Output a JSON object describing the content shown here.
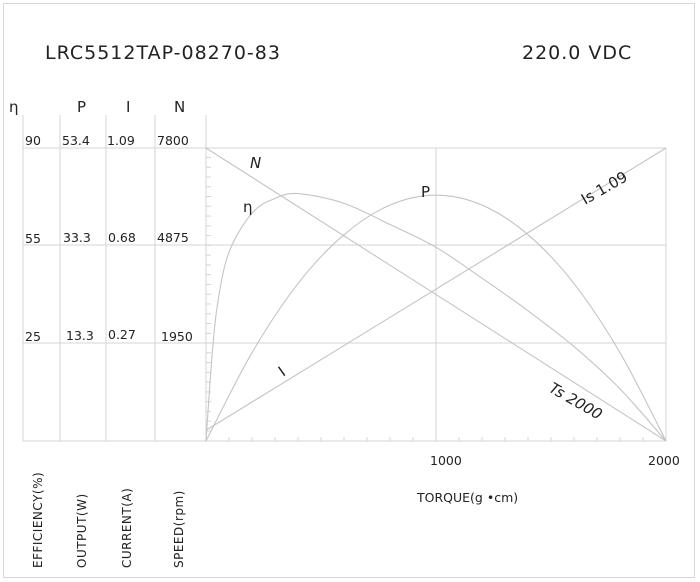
{
  "header": {
    "model": "LRC5512TAP-08270-83",
    "voltage": "220.0 VDC"
  },
  "columns": [
    {
      "symbol": "η",
      "label": "EFFICIENCY(%)",
      "ticks": [
        "90",
        "55",
        "25"
      ]
    },
    {
      "symbol": "P",
      "label": "OUTPUT(W)",
      "ticks": [
        "53.4",
        "33.3",
        "13.3"
      ]
    },
    {
      "symbol": "I",
      "label": "CURRENT(A)",
      "ticks": [
        "1.09",
        "0.68",
        "0.27"
      ]
    },
    {
      "symbol": "N",
      "label": "SPEED(rpm)",
      "ticks": [
        "7800",
        "4875",
        "1950"
      ]
    }
  ],
  "chart_data": {
    "type": "line",
    "xlabel": "TORQUE(g •cm)",
    "xlim": [
      0,
      2000
    ],
    "xticks": [
      "1000",
      "2000"
    ],
    "grid": true,
    "series": [
      {
        "name": "η",
        "ylim": [
          0,
          90
        ],
        "x": [
          0,
          25,
          50,
          100,
          200,
          300,
          400,
          600,
          800,
          1000,
          1200,
          1400,
          1600,
          1800,
          2000
        ],
        "values": [
          0,
          25,
          42,
          58,
          70,
          74.5,
          76,
          73,
          66.5,
          59.5,
          50,
          40,
          29,
          16,
          0
        ]
      },
      {
        "name": "P",
        "ylim": [
          0,
          53.4
        ],
        "x": [
          0,
          200,
          400,
          600,
          800,
          1000,
          1200,
          1400,
          1600,
          1800,
          2000
        ],
        "values": [
          0,
          16.1,
          28.7,
          37.6,
          43.0,
          44.8,
          43.0,
          37.6,
          28.7,
          16.1,
          0
        ]
      },
      {
        "name": "I",
        "ylim": [
          0,
          1.09
        ],
        "x": [
          0,
          2000
        ],
        "values": [
          0.04,
          1.09
        ]
      },
      {
        "name": "N",
        "ylim": [
          0,
          7800
        ],
        "x": [
          0,
          2000
        ],
        "values": [
          7800,
          0
        ]
      }
    ],
    "annotations": {
      "stall_current": "Is 1.09",
      "stall_torque": "Ts 2000"
    }
  }
}
